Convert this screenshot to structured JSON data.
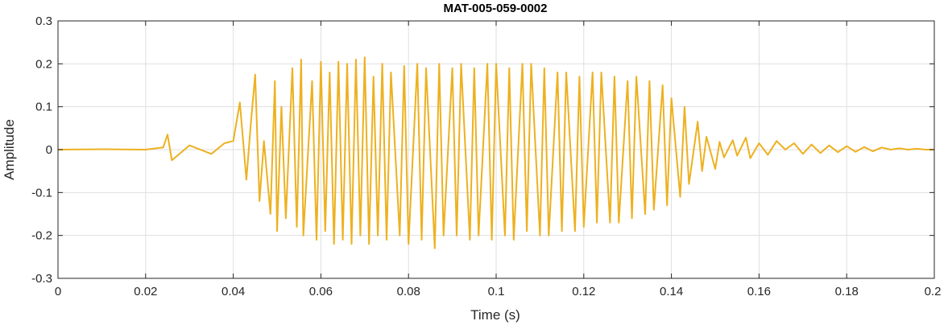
{
  "chart_data": {
    "type": "line",
    "title": "MAT-005-059-0002",
    "xlabel": "Time (s)",
    "ylabel": "Amplitude",
    "xlim": [
      0,
      0.2
    ],
    "ylim": [
      -0.3,
      0.3
    ],
    "x_ticks": [
      "0",
      "0.02",
      "0.04",
      "0.06",
      "0.08",
      "0.1",
      "0.12",
      "0.14",
      "0.16",
      "0.18",
      "0.2"
    ],
    "y_ticks": [
      "-0.3",
      "-0.2",
      "-0.1",
      "0",
      "0.1",
      "0.2",
      "0.3"
    ],
    "grid": true,
    "line_color": "#EDB120",
    "series": [
      {
        "x": [
          0,
          0.01,
          0.02,
          0.024,
          0.025,
          0.026,
          0.03,
          0.035,
          0.038,
          0.04,
          0.0415,
          0.043,
          0.044,
          0.045,
          0.046,
          0.047,
          0.0485,
          0.0495,
          0.05,
          0.051,
          0.052,
          0.0535,
          0.0545,
          0.0555,
          0.056,
          0.058,
          0.059,
          0.06,
          0.061,
          0.062,
          0.063,
          0.064,
          0.065,
          0.066,
          0.067,
          0.068,
          0.069,
          0.07,
          0.071,
          0.072,
          0.073,
          0.074,
          0.075,
          0.076,
          0.078,
          0.079,
          0.08,
          0.082,
          0.083,
          0.084,
          0.086,
          0.087,
          0.088,
          0.09,
          0.091,
          0.092,
          0.094,
          0.095,
          0.096,
          0.098,
          0.099,
          0.1,
          0.102,
          0.103,
          0.104,
          0.106,
          0.107,
          0.108,
          0.11,
          0.111,
          0.112,
          0.114,
          0.115,
          0.116,
          0.118,
          0.119,
          0.12,
          0.122,
          0.123,
          0.124,
          0.126,
          0.127,
          0.128,
          0.13,
          0.131,
          0.132,
          0.134,
          0.135,
          0.136,
          0.138,
          0.139,
          0.14,
          0.142,
          0.143,
          0.144,
          0.146,
          0.147,
          0.148,
          0.15,
          0.151,
          0.152,
          0.154,
          0.155,
          0.157,
          0.158,
          0.16,
          0.162,
          0.164,
          0.166,
          0.168,
          0.17,
          0.172,
          0.174,
          0.176,
          0.178,
          0.18,
          0.182,
          0.184,
          0.186,
          0.188,
          0.19,
          0.192,
          0.194,
          0.196,
          0.198,
          0.2
        ],
        "y": [
          0,
          0.001,
          0,
          0.005,
          0.035,
          -0.025,
          0.01,
          -0.01,
          0.015,
          0.02,
          0.11,
          -0.07,
          0.06,
          0.175,
          -0.12,
          0.02,
          -0.15,
          0.16,
          -0.19,
          0.1,
          -0.16,
          0.19,
          -0.18,
          0.21,
          -0.2,
          0.16,
          -0.21,
          0.205,
          -0.19,
          0.18,
          -0.22,
          0.205,
          -0.21,
          0.2,
          -0.22,
          0.21,
          -0.2,
          0.215,
          -0.22,
          0.17,
          -0.2,
          0.2,
          -0.21,
          0.18,
          -0.2,
          0.195,
          -0.22,
          0.2,
          -0.21,
          0.19,
          -0.23,
          0.2,
          -0.2,
          0.19,
          -0.2,
          0.2,
          -0.21,
          0.19,
          -0.2,
          0.2,
          -0.21,
          0.2,
          -0.2,
          0.19,
          -0.21,
          0.2,
          -0.19,
          0.2,
          -0.2,
          0.19,
          -0.2,
          0.18,
          -0.19,
          0.18,
          -0.19,
          0.17,
          -0.18,
          0.18,
          -0.17,
          0.18,
          -0.17,
          0.17,
          -0.17,
          0.16,
          -0.16,
          0.17,
          -0.15,
          0.16,
          -0.14,
          0.15,
          -0.13,
          0.12,
          -0.11,
          0.1,
          -0.08,
          0.065,
          -0.05,
          0.03,
          -0.045,
          0.018,
          -0.018,
          0.022,
          -0.014,
          0.028,
          -0.02,
          0.015,
          -0.012,
          0.02,
          0.0,
          0.015,
          -0.01,
          0.012,
          -0.008,
          0.01,
          -0.006,
          0.008,
          -0.005,
          0.006,
          -0.004,
          0.005,
          0.0,
          0.003,
          0.0,
          0.002,
          0.0,
          0.0
        ]
      }
    ]
  }
}
